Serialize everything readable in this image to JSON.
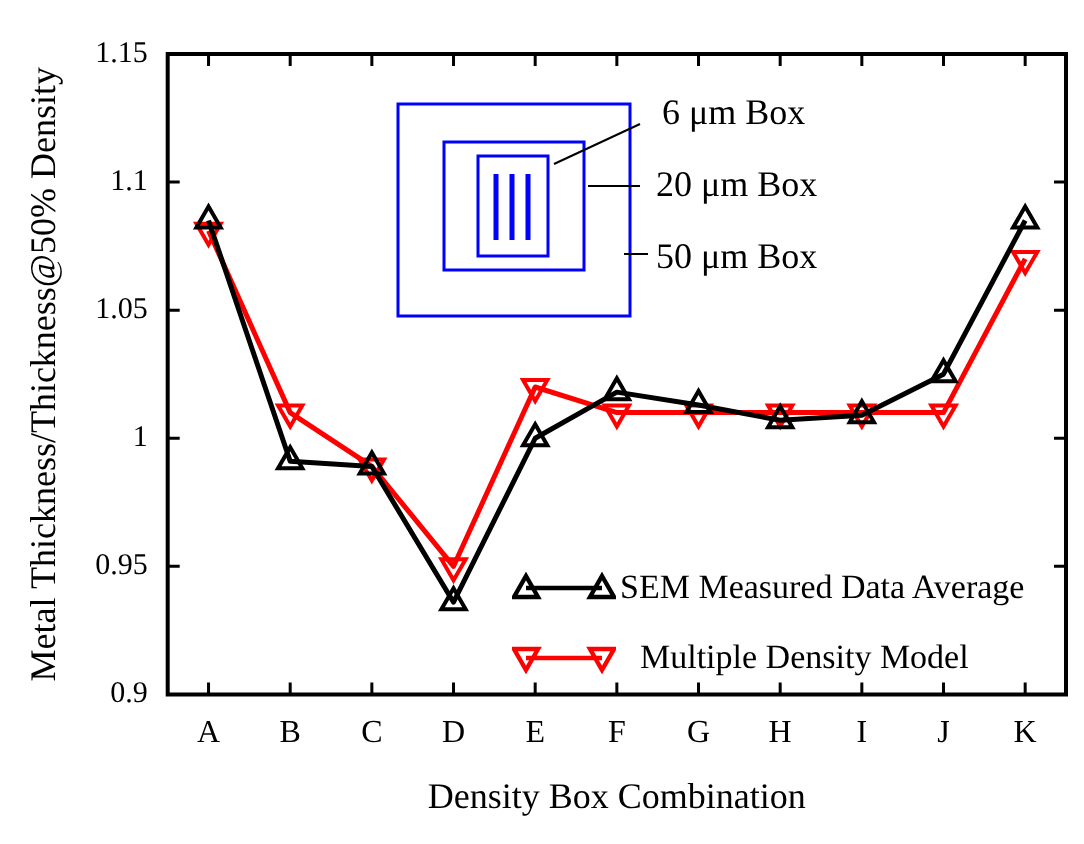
{
  "chart_data": {
    "type": "line",
    "xlabel": "Density Box Combination",
    "ylabel": "Metal Thickness/Thickness@50% Density",
    "categories": [
      "A",
      "B",
      "C",
      "D",
      "E",
      "F",
      "G",
      "H",
      "I",
      "J",
      "K"
    ],
    "series": [
      {
        "name": "SEM Measured Data Average",
        "color": "#000000",
        "marker": "triangle",
        "values": [
          1.085,
          0.991,
          0.989,
          0.936,
          1.0,
          1.018,
          1.013,
          1.007,
          1.009,
          1.025,
          1.085
        ]
      },
      {
        "name": "Multiple Density Model",
        "color": "#ff0000",
        "marker": "triangle",
        "values": [
          1.081,
          1.01,
          0.989,
          0.95,
          1.02,
          1.01,
          1.01,
          1.01,
          1.01,
          1.01,
          1.07
        ]
      }
    ],
    "ylim": [
      0.9,
      1.15
    ],
    "yticks": [
      0.9,
      0.95,
      1,
      1.05,
      1.1,
      1.15
    ],
    "grid": false,
    "legend": "bottom right",
    "line_style": "solid",
    "annotations": [
      "6 μm Box",
      "20 μm Box",
      "50 μm Box"
    ]
  }
}
